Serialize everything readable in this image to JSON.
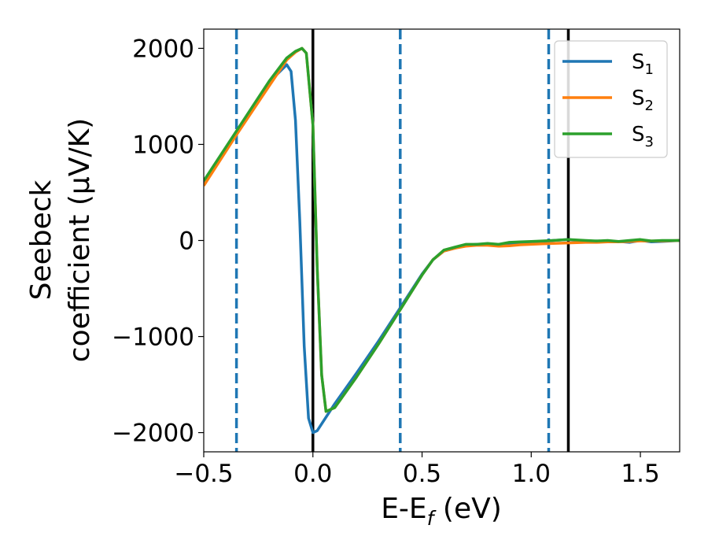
{
  "chart_data": {
    "type": "line",
    "title": "",
    "xlabel": "E-E",
    "xlabel_sub": "f",
    "xlabel_unit": " (eV)",
    "ylabel_line1": "Seebeck",
    "ylabel_line2": "coefficient  (μV/K)",
    "xlim": [
      -0.5,
      1.68
    ],
    "ylim": [
      -2200,
      2200
    ],
    "xticks": [
      -0.5,
      0.0,
      0.5,
      1.0,
      1.5
    ],
    "xtick_labels": [
      "−0.5",
      "0.0",
      "0.5",
      "1.0",
      "1.5"
    ],
    "yticks": [
      -2000,
      -1000,
      0,
      1000,
      2000
    ],
    "ytick_labels": [
      "−2000",
      "−1000",
      "0",
      "1000",
      "2000"
    ],
    "legend_position": "top-right",
    "vertical_lines_solid": [
      0.0,
      1.17
    ],
    "vertical_lines_dashed": [
      -0.35,
      0.4,
      1.08
    ],
    "series": [
      {
        "name": "S",
        "sub": "1",
        "color": "#1f77b4",
        "x": [
          -0.5,
          -0.35,
          -0.2,
          -0.12,
          -0.1,
          -0.08,
          -0.06,
          -0.04,
          -0.02,
          0.0,
          0.02,
          0.1,
          0.2,
          0.3,
          0.4,
          0.5,
          0.55,
          0.6,
          0.65,
          0.7,
          0.75,
          0.8,
          0.85,
          0.9,
          0.95,
          1.0,
          1.05,
          1.1,
          1.17,
          1.25,
          1.3,
          1.35,
          1.4,
          1.45,
          1.5,
          1.55,
          1.6,
          1.68
        ],
        "y": [
          600,
          1130,
          1650,
          1830,
          1760,
          1250,
          200,
          -1100,
          -1850,
          -2000,
          -1980,
          -1700,
          -1380,
          -1050,
          -700,
          -350,
          -200,
          -110,
          -80,
          -50,
          -40,
          -40,
          -45,
          -35,
          -30,
          -20,
          -10,
          0,
          10,
          -10,
          -5,
          -15,
          -10,
          -20,
          0,
          -15,
          -10,
          0
        ]
      },
      {
        "name": "S",
        "sub": "2",
        "color": "#ff7f0e",
        "x": [
          -0.5,
          -0.35,
          -0.2,
          -0.12,
          -0.08,
          -0.05,
          -0.03,
          0.0,
          0.02,
          0.04,
          0.06,
          0.1,
          0.2,
          0.3,
          0.4,
          0.5,
          0.55,
          0.6,
          0.65,
          0.7,
          0.75,
          0.8,
          0.85,
          0.9,
          0.95,
          1.0,
          1.05,
          1.1,
          1.17,
          1.25,
          1.3,
          1.35,
          1.4,
          1.45,
          1.5,
          1.55,
          1.6,
          1.68
        ],
        "y": [
          570,
          1100,
          1610,
          1880,
          1960,
          2000,
          1950,
          1200,
          -300,
          -1400,
          -1780,
          -1740,
          -1420,
          -1080,
          -720,
          -360,
          -200,
          -110,
          -80,
          -60,
          -50,
          -50,
          -60,
          -55,
          -45,
          -40,
          -35,
          -30,
          -25,
          -20,
          -20,
          -15,
          -15,
          -10,
          -5,
          -5,
          -5,
          0
        ]
      },
      {
        "name": "S",
        "sub": "3",
        "color": "#2ca02c",
        "x": [
          -0.5,
          -0.35,
          -0.2,
          -0.12,
          -0.08,
          -0.05,
          -0.03,
          0.0,
          0.02,
          0.04,
          0.06,
          0.1,
          0.2,
          0.3,
          0.4,
          0.5,
          0.55,
          0.6,
          0.65,
          0.7,
          0.75,
          0.8,
          0.85,
          0.9,
          0.95,
          1.0,
          1.05,
          1.1,
          1.17,
          1.25,
          1.3,
          1.35,
          1.4,
          1.45,
          1.5,
          1.55,
          1.6,
          1.68
        ],
        "y": [
          620,
          1140,
          1660,
          1900,
          1970,
          2000,
          1950,
          1200,
          -300,
          -1400,
          -1780,
          -1740,
          -1420,
          -1080,
          -720,
          -360,
          -200,
          -100,
          -70,
          -40,
          -40,
          -30,
          -40,
          -20,
          -15,
          -10,
          -5,
          0,
          10,
          0,
          -5,
          0,
          -10,
          0,
          10,
          -5,
          0,
          0
        ]
      }
    ]
  }
}
